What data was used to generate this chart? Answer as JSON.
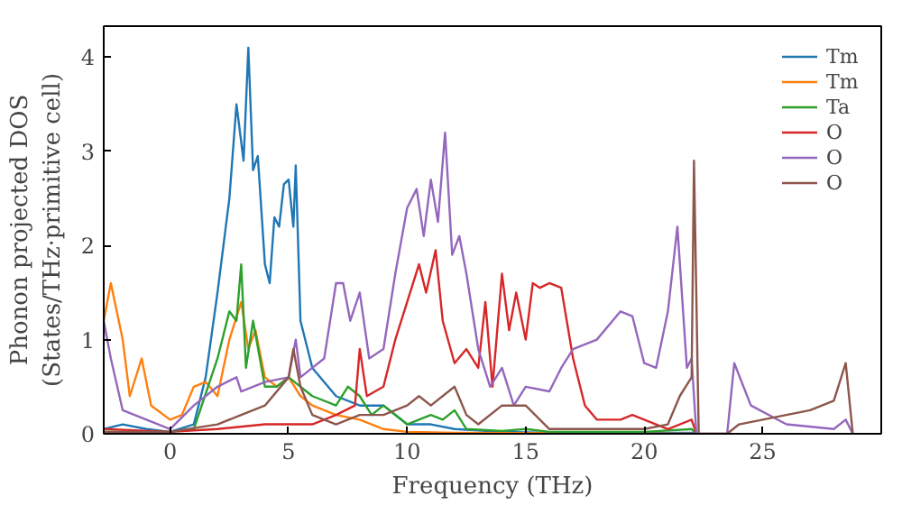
{
  "chart_data": {
    "type": "line",
    "xlabel": "Frequency (THz)",
    "ylabel": "Phonon projected DOS\n(States/THz·primitive cell)",
    "xlim": [
      -2.8,
      30
    ],
    "ylim": [
      0,
      4.33
    ],
    "xticks": [
      0,
      5,
      10,
      15,
      20,
      25
    ],
    "yticks": [
      0,
      1,
      2,
      3,
      4
    ],
    "grid": false,
    "legend": "top right",
    "line_style": "solid",
    "marker": "none",
    "series": [
      {
        "name": "Tm",
        "color": "#1f77b4",
        "x": [
          -2.8,
          -2,
          -1,
          0,
          1,
          1.5,
          2,
          2.5,
          2.8,
          3.1,
          3.3,
          3.5,
          3.7,
          4,
          4.2,
          4.4,
          4.6,
          4.8,
          5,
          5.2,
          5.3,
          5.5,
          6,
          7,
          8,
          9,
          10,
          11,
          12,
          14,
          16,
          22,
          22.2
        ],
        "values": [
          0.05,
          0.1,
          0.05,
          0.02,
          0.1,
          0.6,
          1.5,
          2.5,
          3.5,
          2.9,
          4.1,
          2.8,
          2.95,
          1.8,
          1.6,
          2.3,
          2.2,
          2.65,
          2.7,
          2.2,
          2.85,
          1.2,
          0.7,
          0.4,
          0.3,
          0.3,
          0.1,
          0.1,
          0.05,
          0.02,
          0.01,
          0.01,
          0
        ]
      },
      {
        "name": "Tm",
        "color": "#ff7f0e",
        "x": [
          -2.8,
          -2.5,
          -2,
          -1.7,
          -1.2,
          -0.8,
          0,
          0.5,
          1,
          1.5,
          2,
          2.5,
          3,
          3.3,
          3.6,
          4,
          4.5,
          5,
          5.5,
          6,
          7,
          8,
          9,
          10,
          12,
          22
        ],
        "values": [
          1.2,
          1.6,
          1.0,
          0.4,
          0.8,
          0.3,
          0.15,
          0.2,
          0.5,
          0.55,
          0.4,
          1.0,
          1.4,
          0.9,
          1.1,
          0.6,
          0.5,
          0.6,
          0.4,
          0.3,
          0.2,
          0.15,
          0.05,
          0.02,
          0.01,
          0
        ]
      },
      {
        "name": "Ta",
        "color": "#2ca02c",
        "x": [
          -2.8,
          0,
          1,
          2,
          2.5,
          2.8,
          3,
          3.2,
          3.5,
          4,
          4.5,
          5,
          6,
          7,
          7.5,
          8,
          8.5,
          9,
          10,
          11,
          11.5,
          12,
          12.5,
          14,
          15,
          16,
          20,
          22,
          22.2
        ],
        "values": [
          0.02,
          0.02,
          0.05,
          0.8,
          1.3,
          1.2,
          1.8,
          0.7,
          1.2,
          0.5,
          0.5,
          0.6,
          0.4,
          0.3,
          0.5,
          0.4,
          0.2,
          0.3,
          0.1,
          0.2,
          0.15,
          0.25,
          0.05,
          0.03,
          0.05,
          0.02,
          0.02,
          0.05,
          0
        ]
      },
      {
        "name": "O",
        "color": "#d62728",
        "x": [
          -2.8,
          0,
          2,
          4,
          6,
          7,
          7.8,
          8,
          8.3,
          9,
          9.5,
          10,
          10.5,
          10.8,
          11.2,
          11.5,
          12,
          12.5,
          13,
          13.3,
          13.6,
          14,
          14.3,
          14.6,
          15,
          15.3,
          15.6,
          16,
          16.5,
          17,
          17.5,
          18,
          19,
          19.5,
          20,
          21,
          22,
          22.2
        ],
        "values": [
          0.05,
          0.02,
          0.05,
          0.1,
          0.1,
          0.2,
          0.3,
          0.9,
          0.4,
          0.5,
          1.0,
          1.4,
          1.8,
          1.5,
          1.95,
          1.2,
          0.75,
          0.9,
          0.7,
          1.4,
          0.5,
          1.7,
          1.1,
          1.5,
          1.0,
          1.6,
          1.55,
          1.6,
          1.55,
          0.8,
          0.3,
          0.15,
          0.15,
          0.2,
          0.15,
          0.05,
          0.15,
          0
        ]
      },
      {
        "name": "O",
        "color": "#9467bd",
        "x": [
          -2.8,
          -2.5,
          -2,
          -1.5,
          0,
          1,
          2,
          2.8,
          3,
          3.5,
          4,
          5,
          5.3,
          5.5,
          6,
          6.5,
          7,
          7.3,
          7.6,
          8,
          8.4,
          9,
          9.5,
          10,
          10.4,
          10.7,
          11,
          11.3,
          11.6,
          11.9,
          12.2,
          12.5,
          13,
          13.5,
          14,
          14.5,
          15,
          16,
          16.5,
          17,
          18,
          19,
          19.5,
          20,
          20.5,
          21,
          21.4,
          21.8,
          22,
          22.2,
          23.5,
          23.8,
          24.5,
          26,
          28,
          28.5,
          28.8
        ],
        "values": [
          1.2,
          0.8,
          0.25,
          0.2,
          0.05,
          0.3,
          0.5,
          0.6,
          0.45,
          0.5,
          0.55,
          0.6,
          1.0,
          0.6,
          0.7,
          0.8,
          1.6,
          1.6,
          1.2,
          1.5,
          0.8,
          0.9,
          1.7,
          2.4,
          2.6,
          2.1,
          2.7,
          2.25,
          3.2,
          1.9,
          2.1,
          1.7,
          0.9,
          0.5,
          0.7,
          0.3,
          0.5,
          0.45,
          0.7,
          0.9,
          1.0,
          1.3,
          1.25,
          0.75,
          0.7,
          1.3,
          2.2,
          0.7,
          0.8,
          0,
          0,
          0.75,
          0.3,
          0.1,
          0.05,
          0.15,
          0
        ]
      },
      {
        "name": "O",
        "color": "#8c564b",
        "x": [
          -2.8,
          0,
          2,
          3,
          4,
          5,
          5.2,
          5.5,
          6,
          7,
          8,
          9,
          10,
          10.5,
          11,
          12,
          12.5,
          13,
          14,
          15,
          16,
          18,
          20,
          21,
          21.5,
          22,
          22.1,
          22.3,
          23.5,
          24,
          25,
          27,
          28,
          28.5,
          28.8
        ],
        "values": [
          0.02,
          0.02,
          0.1,
          0.2,
          0.3,
          0.6,
          0.9,
          0.5,
          0.2,
          0.1,
          0.2,
          0.2,
          0.3,
          0.4,
          0.3,
          0.5,
          0.2,
          0.1,
          0.3,
          0.3,
          0.05,
          0.05,
          0.05,
          0.1,
          0.4,
          0.6,
          2.9,
          0,
          0,
          0.1,
          0.15,
          0.25,
          0.35,
          0.75,
          0
        ]
      }
    ]
  }
}
